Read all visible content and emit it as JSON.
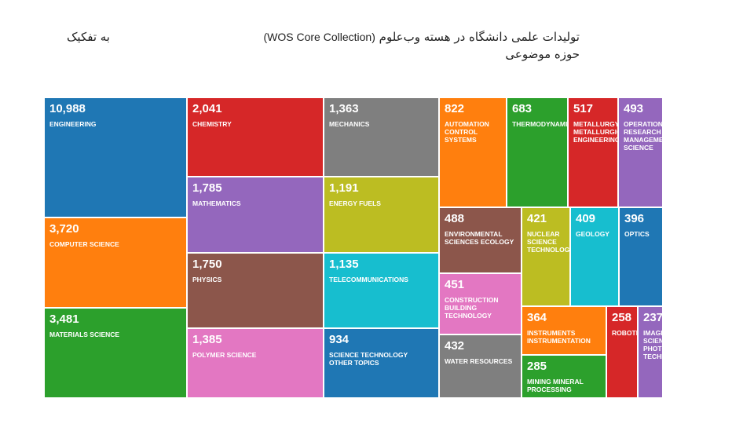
{
  "title": {
    "part1": "تولیدات علمی دانشگاه در هسته وب‌علوم",
    "part2": "(WOS Core Collection)",
    "part3": "حوزه موضوعی"
  },
  "subtitle": "به تفکیک",
  "chart_data": {
    "type": "treemap",
    "cells": [
      {
        "value": "10,988",
        "label": "ENGINEERING",
        "color": "#1f77b4"
      },
      {
        "value": "3,720",
        "label": "COMPUTER SCIENCE",
        "color": "#ff7f0e"
      },
      {
        "value": "3,481",
        "label": "MATERIALS SCIENCE",
        "color": "#2ca02c"
      },
      {
        "value": "2,041",
        "label": "CHEMISTRY",
        "color": "#d62728"
      },
      {
        "value": "1,785",
        "label": "MATHEMATICS",
        "color": "#9467bd"
      },
      {
        "value": "1,750",
        "label": "PHYSICS",
        "color": "#8c564b"
      },
      {
        "value": "1,385",
        "label": "POLYMER SCIENCE",
        "color": "#e377c2"
      },
      {
        "value": "1,363",
        "label": "MECHANICS",
        "color": "#7f7f7f"
      },
      {
        "value": "1,191",
        "label": "ENERGY FUELS",
        "color": "#bcbd22"
      },
      {
        "value": "1,135",
        "label": "TELECOMMUNICATIONS",
        "color": "#17becf"
      },
      {
        "value": "934",
        "label": "SCIENCE TECHNOLOGY\nOTHER TOPICS",
        "color": "#1f77b4"
      },
      {
        "value": "822",
        "label": "AUTOMATION\nCONTROL\nSYSTEMS",
        "color": "#ff7f0e"
      },
      {
        "value": "683",
        "label": "THERMODYNAMICS",
        "color": "#2ca02c"
      },
      {
        "value": "517",
        "label": "METALLURGY\nMETALLURGICAL\nENGINEERING",
        "color": "#d62728"
      },
      {
        "value": "493",
        "label": "OPERATIONS\nRESEARCH\nMANAGEMENT\nSCIENCE",
        "color": "#9467bd"
      },
      {
        "value": "488",
        "label": "ENVIRONMENTAL\nSCIENCES ECOLOGY",
        "color": "#8c564b"
      },
      {
        "value": "451",
        "label": "CONSTRUCTION\nBUILDING\nTECHNOLOGY",
        "color": "#e377c2"
      },
      {
        "value": "432",
        "label": "WATER RESOURCES",
        "color": "#7f7f7f"
      },
      {
        "value": "421",
        "label": "NUCLEAR\nSCIENCE\nTECHNOLOGY",
        "color": "#bcbd22"
      },
      {
        "value": "409",
        "label": "GEOLOGY",
        "color": "#17becf"
      },
      {
        "value": "396",
        "label": "OPTICS",
        "color": "#1f77b4"
      },
      {
        "value": "364",
        "label": "INSTRUMENTS\nINSTRUMENTATION",
        "color": "#ff7f0e"
      },
      {
        "value": "285",
        "label": "MINING MINERAL\nPROCESSING",
        "color": "#2ca02c"
      },
      {
        "value": "258",
        "label": "ROBOTICS",
        "color": "#d62728"
      },
      {
        "value": "237",
        "label": "IMAGING\nSCIENCE\nPHOTOGRAPHIC\nTECHNOLOGY",
        "color": "#9467bd"
      }
    ]
  }
}
